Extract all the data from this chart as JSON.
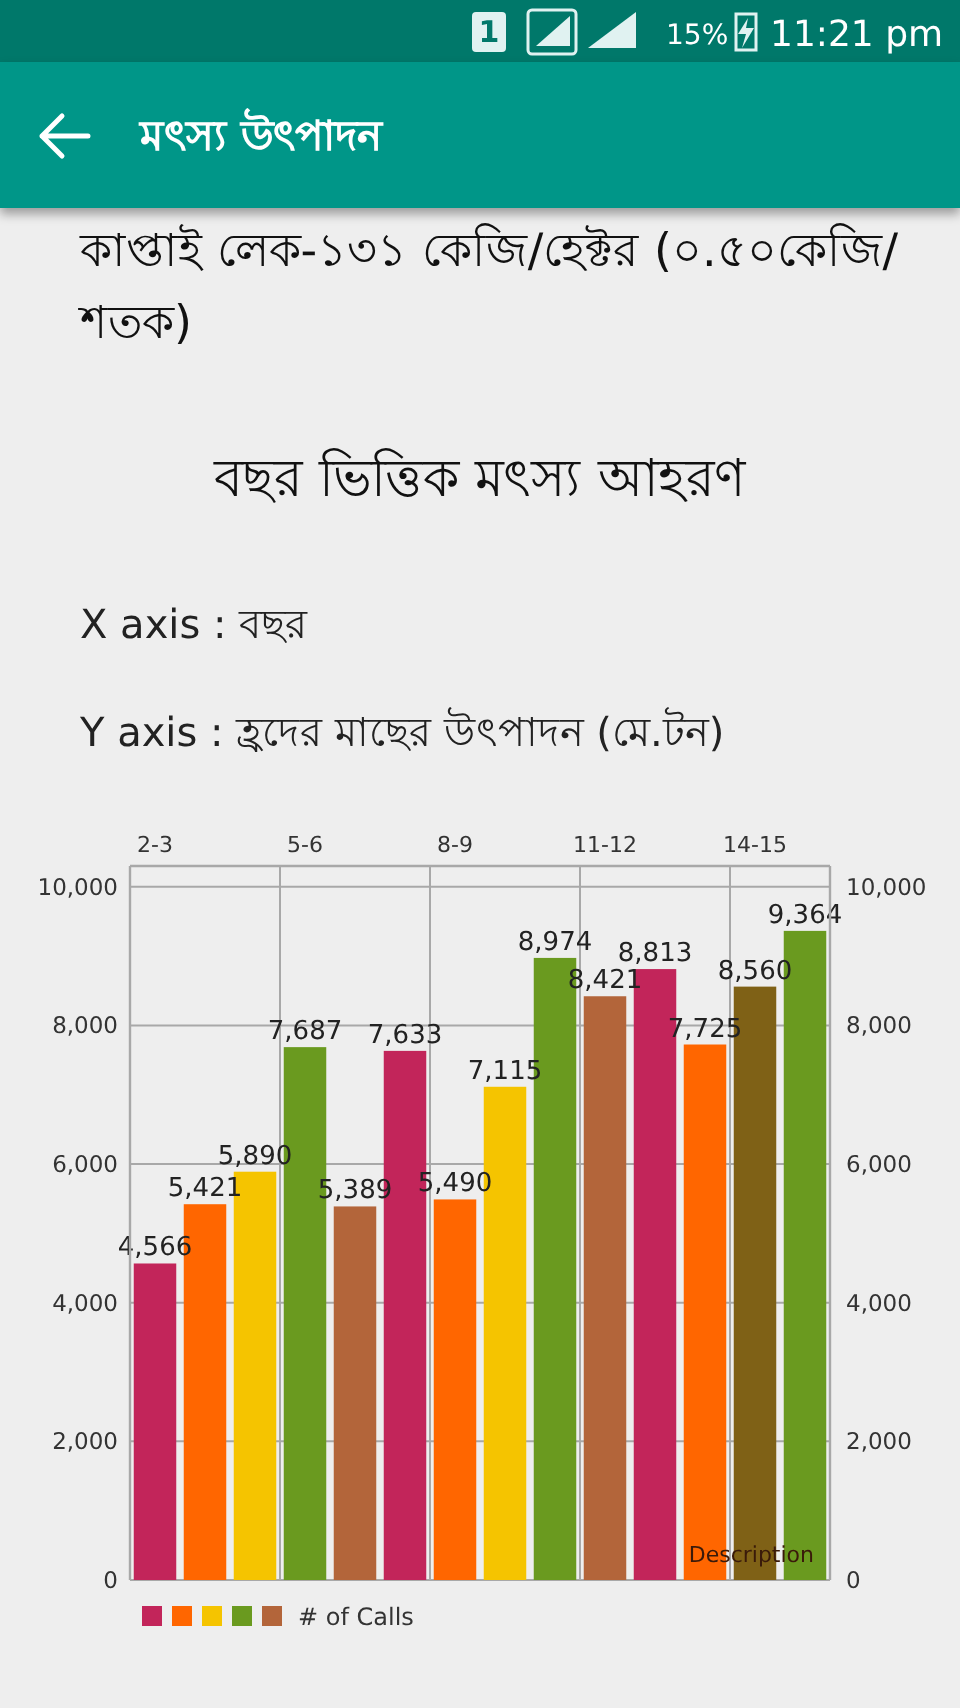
{
  "chart_data": {
    "type": "bar",
    "title": "বছর ভিত্তিক মৎস্য আহরণ",
    "xlabel": "X axis : বছর",
    "ylabel": "Y axis : হ্রদের মাছের উৎপাদন (মে.টন)",
    "annotations": [
      "1",
      "15%",
      "11:21 pm",
      "মৎস্য উৎপাদন",
      "কাপ্তাই লেক-১৩১ কেজি/হেক্টর (০.৫০কেজি/শতক)",
      "Description"
    ],
    "categories": [
      "2-3",
      null,
      null,
      "5-6",
      null,
      null,
      "8-9",
      null,
      null,
      "11-12",
      null,
      null,
      "14-15",
      null
    ],
    "series": [
      {
        "name": "# of Calls",
        "values": [
          4566,
          5421,
          5890,
          7687,
          5389,
          7633,
          5490,
          7115,
          8974,
          8421,
          8813,
          7725,
          8560,
          9364
        ],
        "colors": [
          "#c2255a",
          "#ff6600",
          "#f5c400",
          "#6a9a1f",
          "#b3653a",
          "#c2255a",
          "#ff6600",
          "#f5c400",
          "#6a9a1f",
          "#b3653a",
          "#c2255a",
          "#ff6600",
          "#7f6116",
          "#6a9a1f"
        ],
        "value_labels": [
          "4,566",
          "5,421",
          "5,890",
          "7,687",
          "5,389",
          "7,633",
          "5,490",
          "7,115",
          "8,974",
          "8,421",
          "8,813",
          "7,725",
          "8,560",
          "9,364"
        ]
      }
    ],
    "ylim": [
      0,
      10300
    ],
    "yticks": [
      0,
      {
        "value": 2000,
        "label": "2,000"
      },
      {
        "value": 4000,
        "label": "4,000"
      },
      {
        "value": 6000,
        "label": "6,000"
      },
      {
        "value": 8000,
        "label": "8,000"
      },
      {
        "value": 10000,
        "label": "10,000"
      }
    ],
    "y2lim": [
      0,
      10300
    ],
    "y2ticks": [
      0,
      {
        "value": 2000,
        "label": "2,000"
      },
      {
        "value": 4000,
        "label": "4,000"
      },
      {
        "value": 6000,
        "label": "6,000"
      },
      {
        "value": 8000,
        "label": "8,000"
      },
      {
        "value": 10000,
        "label": "10,000"
      }
    ],
    "grid": true,
    "legend": "bottom left"
  }
}
